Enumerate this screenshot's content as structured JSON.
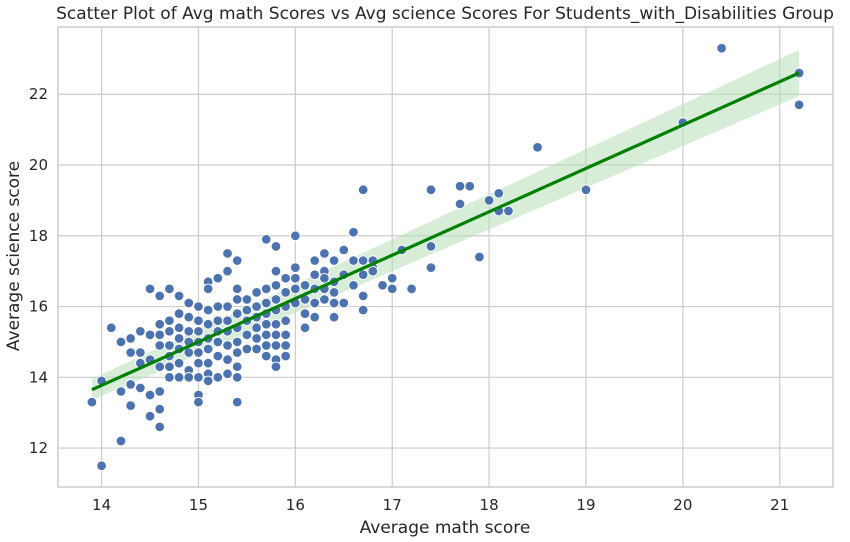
{
  "chart_data": {
    "type": "scatter",
    "title": "Scatter Plot of Avg math Scores vs  Avg science Scores For Students_with_Disabilities Group",
    "xlabel": "Average math score",
    "ylabel": "Average science score",
    "xlim": [
      13.55,
      21.55
    ],
    "ylim": [
      10.9,
      23.9
    ],
    "xticks": [
      14,
      15,
      16,
      17,
      18,
      19,
      20,
      21
    ],
    "yticks": [
      12,
      14,
      16,
      18,
      20,
      22
    ],
    "grid": true,
    "colors": {
      "points": "#4c72b0",
      "point_edge": "#ffffff",
      "regression": "#008000",
      "ci_band": "#b6dfb6",
      "grid": "#cccccc",
      "frame": "#cccccc"
    },
    "regression": {
      "x": [
        13.9,
        21.2
      ],
      "y": [
        13.65,
        22.6
      ],
      "ci_upper": [
        13.95,
        23.25
      ],
      "ci_lower": [
        13.35,
        21.95
      ]
    },
    "points": [
      [
        13.9,
        13.3
      ],
      [
        14.0,
        11.5
      ],
      [
        14.0,
        13.9
      ],
      [
        14.1,
        15.4
      ],
      [
        14.2,
        12.2
      ],
      [
        14.2,
        13.6
      ],
      [
        14.2,
        15.0
      ],
      [
        14.3,
        15.1
      ],
      [
        14.3,
        14.7
      ],
      [
        14.3,
        13.2
      ],
      [
        14.3,
        13.8
      ],
      [
        14.4,
        15.3
      ],
      [
        14.4,
        14.7
      ],
      [
        14.4,
        14.4
      ],
      [
        14.4,
        13.7
      ],
      [
        14.5,
        16.5
      ],
      [
        14.5,
        15.2
      ],
      [
        14.5,
        14.5
      ],
      [
        14.5,
        13.5
      ],
      [
        14.5,
        12.9
      ],
      [
        14.6,
        16.3
      ],
      [
        14.6,
        15.5
      ],
      [
        14.6,
        15.2
      ],
      [
        14.6,
        14.9
      ],
      [
        14.6,
        14.3
      ],
      [
        14.6,
        13.6
      ],
      [
        14.6,
        13.1
      ],
      [
        14.6,
        12.6
      ],
      [
        14.7,
        16.5
      ],
      [
        14.7,
        15.6
      ],
      [
        14.7,
        15.3
      ],
      [
        14.7,
        14.9
      ],
      [
        14.7,
        14.6
      ],
      [
        14.7,
        14.3
      ],
      [
        14.7,
        14.0
      ],
      [
        14.8,
        16.3
      ],
      [
        14.8,
        15.8
      ],
      [
        14.8,
        15.4
      ],
      [
        14.8,
        15.1
      ],
      [
        14.8,
        14.8
      ],
      [
        14.8,
        14.4
      ],
      [
        14.8,
        14.0
      ],
      [
        14.9,
        16.1
      ],
      [
        14.9,
        15.7
      ],
      [
        14.9,
        15.3
      ],
      [
        14.9,
        15.0
      ],
      [
        14.9,
        14.7
      ],
      [
        14.9,
        14.2
      ],
      [
        14.9,
        14.0
      ],
      [
        15.0,
        16.0
      ],
      [
        15.0,
        15.6
      ],
      [
        15.0,
        15.3
      ],
      [
        15.0,
        15.0
      ],
      [
        15.0,
        14.7
      ],
      [
        15.0,
        14.4
      ],
      [
        15.0,
        14.0
      ],
      [
        15.0,
        13.5
      ],
      [
        15.0,
        13.3
      ],
      [
        15.1,
        16.7
      ],
      [
        15.1,
        16.5
      ],
      [
        15.1,
        15.9
      ],
      [
        15.1,
        15.5
      ],
      [
        15.1,
        15.1
      ],
      [
        15.1,
        14.8
      ],
      [
        15.1,
        14.4
      ],
      [
        15.1,
        14.1
      ],
      [
        15.1,
        13.9
      ],
      [
        15.2,
        16.8
      ],
      [
        15.2,
        16.0
      ],
      [
        15.2,
        15.6
      ],
      [
        15.2,
        15.3
      ],
      [
        15.2,
        15.0
      ],
      [
        15.2,
        14.6
      ],
      [
        15.2,
        14.0
      ],
      [
        15.3,
        17.5
      ],
      [
        15.3,
        17.0
      ],
      [
        15.3,
        16.0
      ],
      [
        15.3,
        15.6
      ],
      [
        15.3,
        15.3
      ],
      [
        15.3,
        14.9
      ],
      [
        15.3,
        14.5
      ],
      [
        15.3,
        14.1
      ],
      [
        15.4,
        17.3
      ],
      [
        15.4,
        16.5
      ],
      [
        15.4,
        16.2
      ],
      [
        15.4,
        15.8
      ],
      [
        15.4,
        15.4
      ],
      [
        15.4,
        15.0
      ],
      [
        15.4,
        14.7
      ],
      [
        15.4,
        14.3
      ],
      [
        15.4,
        14.0
      ],
      [
        15.4,
        13.3
      ],
      [
        15.5,
        16.2
      ],
      [
        15.5,
        15.9
      ],
      [
        15.5,
        15.6
      ],
      [
        15.5,
        15.2
      ],
      [
        15.5,
        14.8
      ],
      [
        15.6,
        16.4
      ],
      [
        15.6,
        16.0
      ],
      [
        15.6,
        15.7
      ],
      [
        15.6,
        15.4
      ],
      [
        15.6,
        15.1
      ],
      [
        15.6,
        14.8
      ],
      [
        15.7,
        17.9
      ],
      [
        15.7,
        16.5
      ],
      [
        15.7,
        16.1
      ],
      [
        15.7,
        15.8
      ],
      [
        15.7,
        15.5
      ],
      [
        15.7,
        15.2
      ],
      [
        15.7,
        14.9
      ],
      [
        15.7,
        14.6
      ],
      [
        15.8,
        17.7
      ],
      [
        15.8,
        17.0
      ],
      [
        15.8,
        16.6
      ],
      [
        15.8,
        16.2
      ],
      [
        15.8,
        15.9
      ],
      [
        15.8,
        15.5
      ],
      [
        15.8,
        15.2
      ],
      [
        15.8,
        14.9
      ],
      [
        15.8,
        14.5
      ],
      [
        15.8,
        14.3
      ],
      [
        15.9,
        16.8
      ],
      [
        15.9,
        16.4
      ],
      [
        15.9,
        16.0
      ],
      [
        15.9,
        15.6
      ],
      [
        15.9,
        15.2
      ],
      [
        15.9,
        14.9
      ],
      [
        15.9,
        14.6
      ],
      [
        16.0,
        18.0
      ],
      [
        16.0,
        17.1
      ],
      [
        16.0,
        16.8
      ],
      [
        16.0,
        16.5
      ],
      [
        16.0,
        16.1
      ],
      [
        16.1,
        16.6
      ],
      [
        16.1,
        16.2
      ],
      [
        16.1,
        15.8
      ],
      [
        16.1,
        15.4
      ],
      [
        16.2,
        17.3
      ],
      [
        16.2,
        16.9
      ],
      [
        16.2,
        16.5
      ],
      [
        16.2,
        16.1
      ],
      [
        16.2,
        15.7
      ],
      [
        16.3,
        17.5
      ],
      [
        16.3,
        17.0
      ],
      [
        16.3,
        16.8
      ],
      [
        16.3,
        16.5
      ],
      [
        16.3,
        16.2
      ],
      [
        16.4,
        17.3
      ],
      [
        16.4,
        16.7
      ],
      [
        16.4,
        16.4
      ],
      [
        16.4,
        16.1
      ],
      [
        16.4,
        15.7
      ],
      [
        16.5,
        17.6
      ],
      [
        16.5,
        16.9
      ],
      [
        16.5,
        16.1
      ],
      [
        16.6,
        18.1
      ],
      [
        16.6,
        17.3
      ],
      [
        16.6,
        16.6
      ],
      [
        16.7,
        19.3
      ],
      [
        16.7,
        17.3
      ],
      [
        16.7,
        16.9
      ],
      [
        16.7,
        16.3
      ],
      [
        16.7,
        15.9
      ],
      [
        16.8,
        17.3
      ],
      [
        16.8,
        17.1
      ],
      [
        16.8,
        17.0
      ],
      [
        16.9,
        16.6
      ],
      [
        17.0,
        16.8
      ],
      [
        17.0,
        16.5
      ],
      [
        17.1,
        17.6
      ],
      [
        17.2,
        16.5
      ],
      [
        17.4,
        19.3
      ],
      [
        17.4,
        17.7
      ],
      [
        17.4,
        17.1
      ],
      [
        17.7,
        19.4
      ],
      [
        17.7,
        18.9
      ],
      [
        17.8,
        19.4
      ],
      [
        17.9,
        17.4
      ],
      [
        18.0,
        19.0
      ],
      [
        18.1,
        19.2
      ],
      [
        18.1,
        18.7
      ],
      [
        18.2,
        18.7
      ],
      [
        18.5,
        20.5
      ],
      [
        19.0,
        19.3
      ],
      [
        20.0,
        21.2
      ],
      [
        20.4,
        23.3
      ],
      [
        21.2,
        22.6
      ],
      [
        21.2,
        21.7
      ]
    ]
  }
}
